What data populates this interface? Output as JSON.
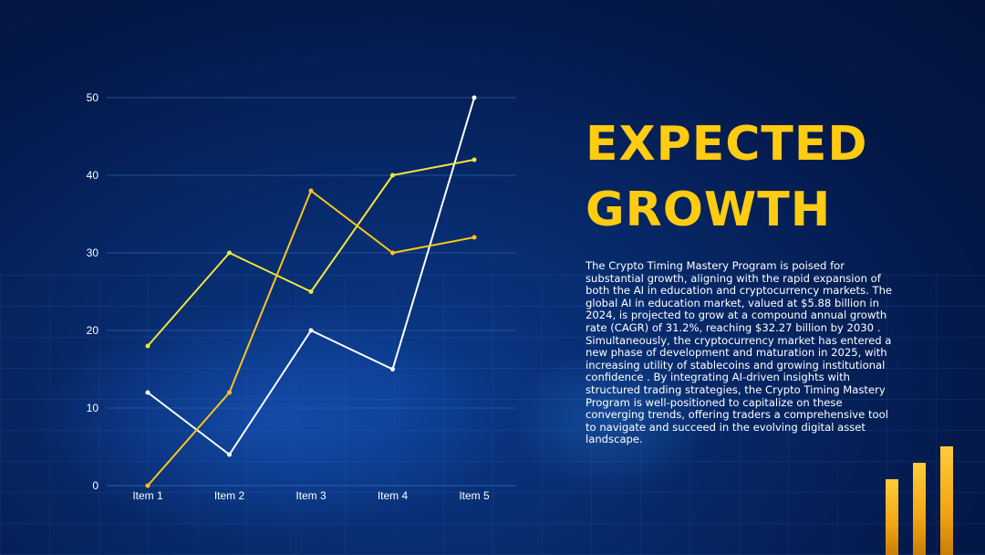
{
  "heading": {
    "line1": "EXPECTED",
    "line2": "GROWTH"
  },
  "body": "The Crypto Timing Mastery Program is poised for substantial growth, aligning with the rapid expansion of both the AI in education and cryptocurrency markets. The global AI in education market, valued at $5.88 billion in 2024, is projected to grow at a compound annual growth rate (CAGR) of 31.2%, reaching $32.27 billion by 2030 . Simultaneously, the cryptocurrency market has entered a new phase of development and maturation in 2025, with increasing utility of stablecoins and growing institutional confidence . By integrating AI-driven insights with structured trading strategies, the Crypto Timing Mastery Program is well-positioned to capitalize on these converging trends, offering traders a comprehensive tool to navigate and succeed in the evolving digital asset landscape.",
  "colors": {
    "accent": "#ffcc12",
    "series_white": "#ffffff",
    "series_yellow": "#f5e63a",
    "series_orange": "#ffc61a",
    "grid": "#2b5ca8"
  },
  "chart_data": {
    "type": "line",
    "categories": [
      "Item 1",
      "Item 2",
      "Item 3",
      "Item 4",
      "Item 5"
    ],
    "ylim": [
      0,
      50
    ],
    "yticks": [
      0,
      10,
      20,
      30,
      40,
      50
    ],
    "grid": true,
    "title": "",
    "xlabel": "",
    "ylabel": "",
    "series": [
      {
        "values": [
          12,
          4,
          20,
          15,
          50
        ],
        "color": "#ffffff"
      },
      {
        "values": [
          18,
          30,
          25,
          40,
          42
        ],
        "color": "#f5e63a"
      },
      {
        "values": [
          0,
          12,
          38,
          30,
          32
        ],
        "color": "#ffc61a"
      }
    ]
  },
  "decor_bars": [
    0.69,
    0.84,
    0.99
  ]
}
